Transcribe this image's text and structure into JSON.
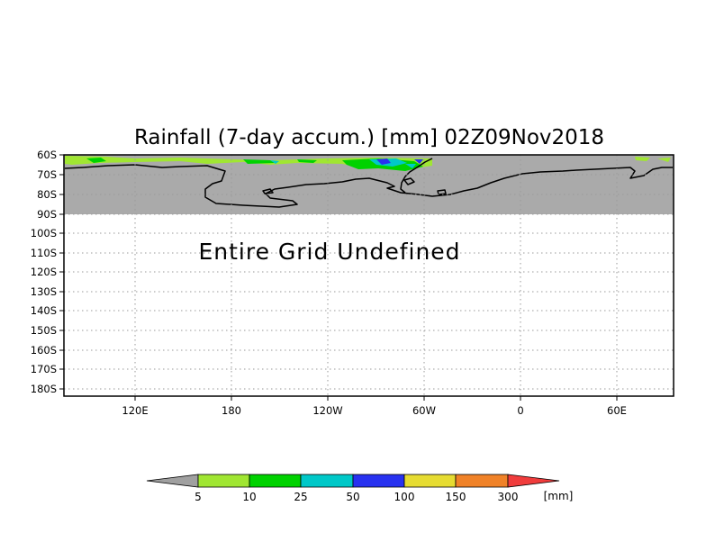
{
  "title": "Rainfall (7-day accum.) [mm] 02Z09Nov2018",
  "message": "Entire Grid Undefined",
  "lat_labels": [
    "60S",
    "70S",
    "80S",
    "90S",
    "100S",
    "110S",
    "120S",
    "130S",
    "140S",
    "150S",
    "160S",
    "170S",
    "180S"
  ],
  "lon_labels": [
    "120E",
    "180",
    "120W",
    "60W",
    "0",
    "60E"
  ],
  "colors": {
    "land_mask": "#aaaaaa",
    "frame": "#000000",
    "gridline": "#9a9a9a"
  },
  "colorbar": {
    "unit": "[mm]",
    "thresholds": [
      "5",
      "10",
      "25",
      "50",
      "100",
      "150",
      "300"
    ],
    "colors": [
      "#a0a0a0",
      "#a0e632",
      "#00d200",
      "#00c8c8",
      "#2832f0",
      "#e6dc32",
      "#f08228",
      "#f03c3c"
    ]
  }
}
